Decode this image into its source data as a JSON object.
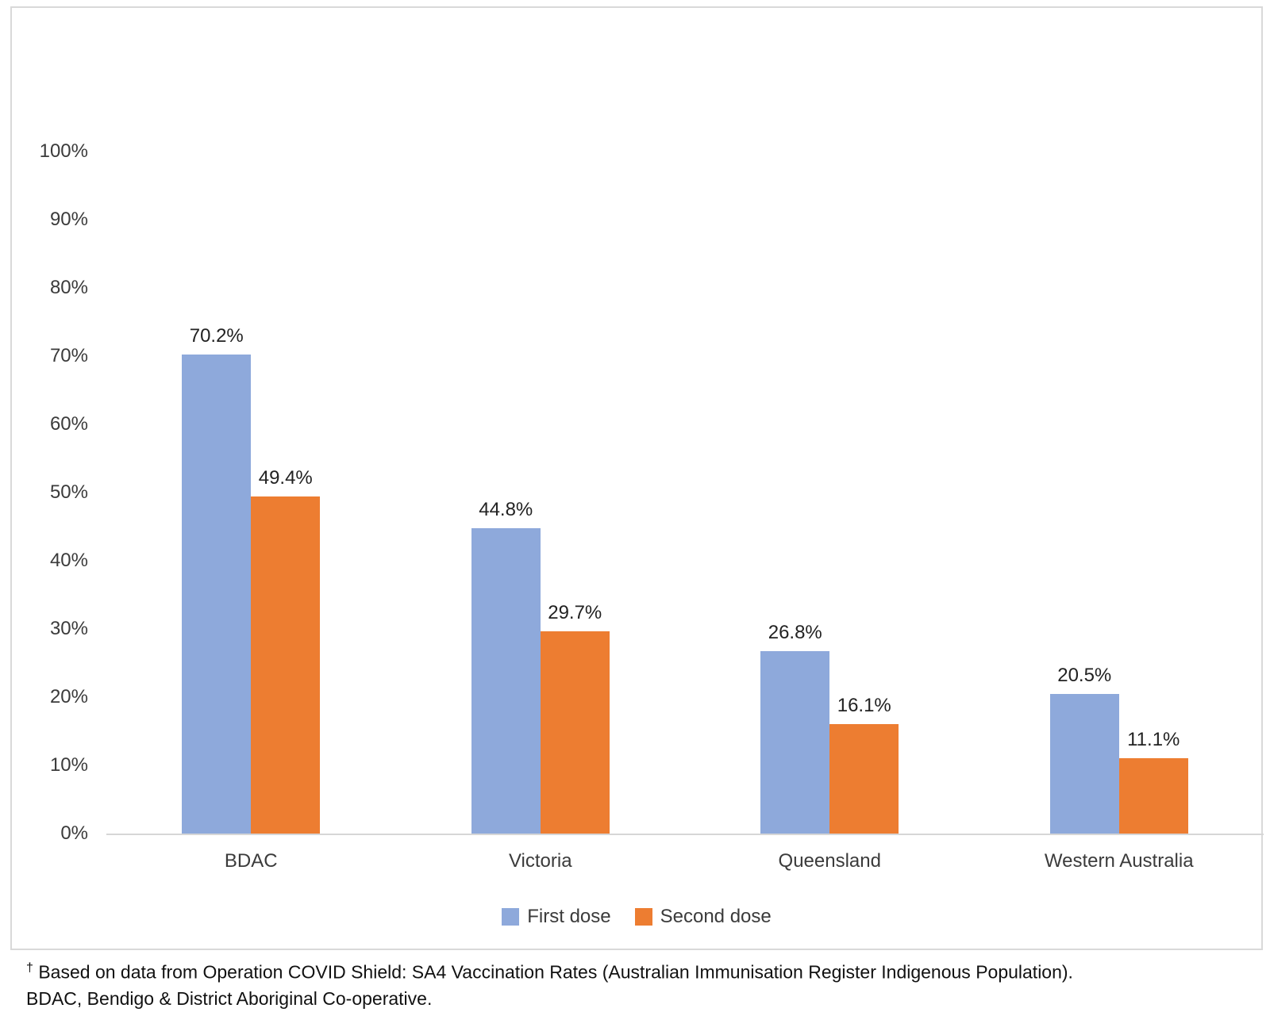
{
  "chart_data": {
    "type": "bar",
    "title": "",
    "categories": [
      "BDAC",
      "Victoria",
      "Queensland",
      "Western Australia"
    ],
    "series": [
      {
        "name": "First dose",
        "color": "#8EA9DB",
        "values": [
          70.2,
          44.8,
          26.8,
          20.5
        ]
      },
      {
        "name": "Second dose",
        "color": "#ED7D31",
        "values": [
          49.4,
          29.7,
          16.1,
          11.1
        ]
      }
    ],
    "value_suffix": "%",
    "xlabel": "",
    "ylabel": "",
    "ylim": [
      0,
      100
    ],
    "y_ticks": [
      "0%",
      "10%",
      "20%",
      "30%",
      "40%",
      "50%",
      "60%",
      "70%",
      "80%",
      "90%",
      "100%"
    ],
    "grid": "off",
    "legend_position": "bottom",
    "data_labels": "above bars"
  },
  "footnote": {
    "dagger": "†",
    "line1": "Based on data from Operation COVID Shield: SA4 Vaccination Rates (Australian Immunisation Register Indigenous Population).",
    "line2": "BDAC, Bendigo & District Aboriginal Co-operative."
  },
  "colors": {
    "first_dose": "#8EA9DB",
    "second_dose": "#ED7D31",
    "axis_line": "#D6D6D6",
    "chart_border": "#D9D9D9",
    "tick_text": "#3B3B3B",
    "label_text": "#222222"
  }
}
